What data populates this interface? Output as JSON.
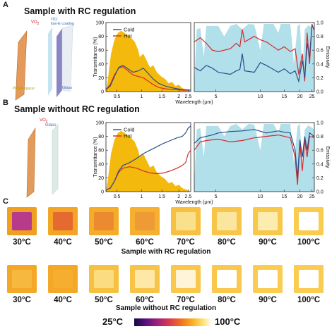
{
  "panelA": {
    "letter": "A",
    "title": "Sample with RC regulation",
    "labels": {
      "vo2": "VO",
      "ito": "ITO",
      "lowe": "low-E coating",
      "pmma": "PMMA spacer",
      "glass": "Glass"
    },
    "left_plot": {
      "ylabel": "Transmittance (%)",
      "yticks": [
        "0",
        "20",
        "40",
        "60",
        "80",
        "100"
      ],
      "xticks": [
        "0.5",
        "1",
        "1.5",
        "2",
        "2.5"
      ]
    },
    "right_plot": {
      "ylabel": "Emissivity",
      "yticks": [
        "0.0",
        "0.2",
        "0.4",
        "0.6",
        "0.8",
        "1.0"
      ],
      "xticks": [
        "5",
        "10",
        "15",
        "20",
        "25"
      ]
    },
    "xlabel": "Wavelength (μm)",
    "legend": [
      "Cold",
      "Hot"
    ]
  },
  "panelB": {
    "letter": "B",
    "title": "Sample without RC regulation",
    "labels": {
      "vo2": "VO",
      "glass": "Glass"
    },
    "left_plot": {
      "ylabel": "Transmittance (%)",
      "yticks": [
        "0",
        "20",
        "40",
        "60",
        "80",
        "100"
      ],
      "xticks": [
        "0.5",
        "1",
        "1.5",
        "2",
        "2.5"
      ]
    },
    "right_plot": {
      "ylabel": "Emissivity",
      "yticks": [
        "0.0",
        "0.2",
        "0.4",
        "0.6",
        "0.8",
        "1.0"
      ],
      "xticks": [
        "5",
        "10",
        "15",
        "20",
        "25"
      ]
    },
    "xlabel": "Wavelength (μm)",
    "legend": [
      "Cold",
      "Hot"
    ]
  },
  "panelC": {
    "letter": "C",
    "temps": [
      "30°C",
      "40°C",
      "50°C",
      "60°C",
      "70°C",
      "80°C",
      "90°C",
      "100°C"
    ],
    "row1_caption": "Sample with RC regulation",
    "row2_caption": "Sample without RC regulation",
    "colorbar": {
      "min": "25°C",
      "max": "100°C"
    }
  },
  "colors": {
    "cold": "#2b4f8a",
    "hot": "#d42a2a",
    "solar": "#f2b600",
    "atm": "#a8dbe8"
  }
}
